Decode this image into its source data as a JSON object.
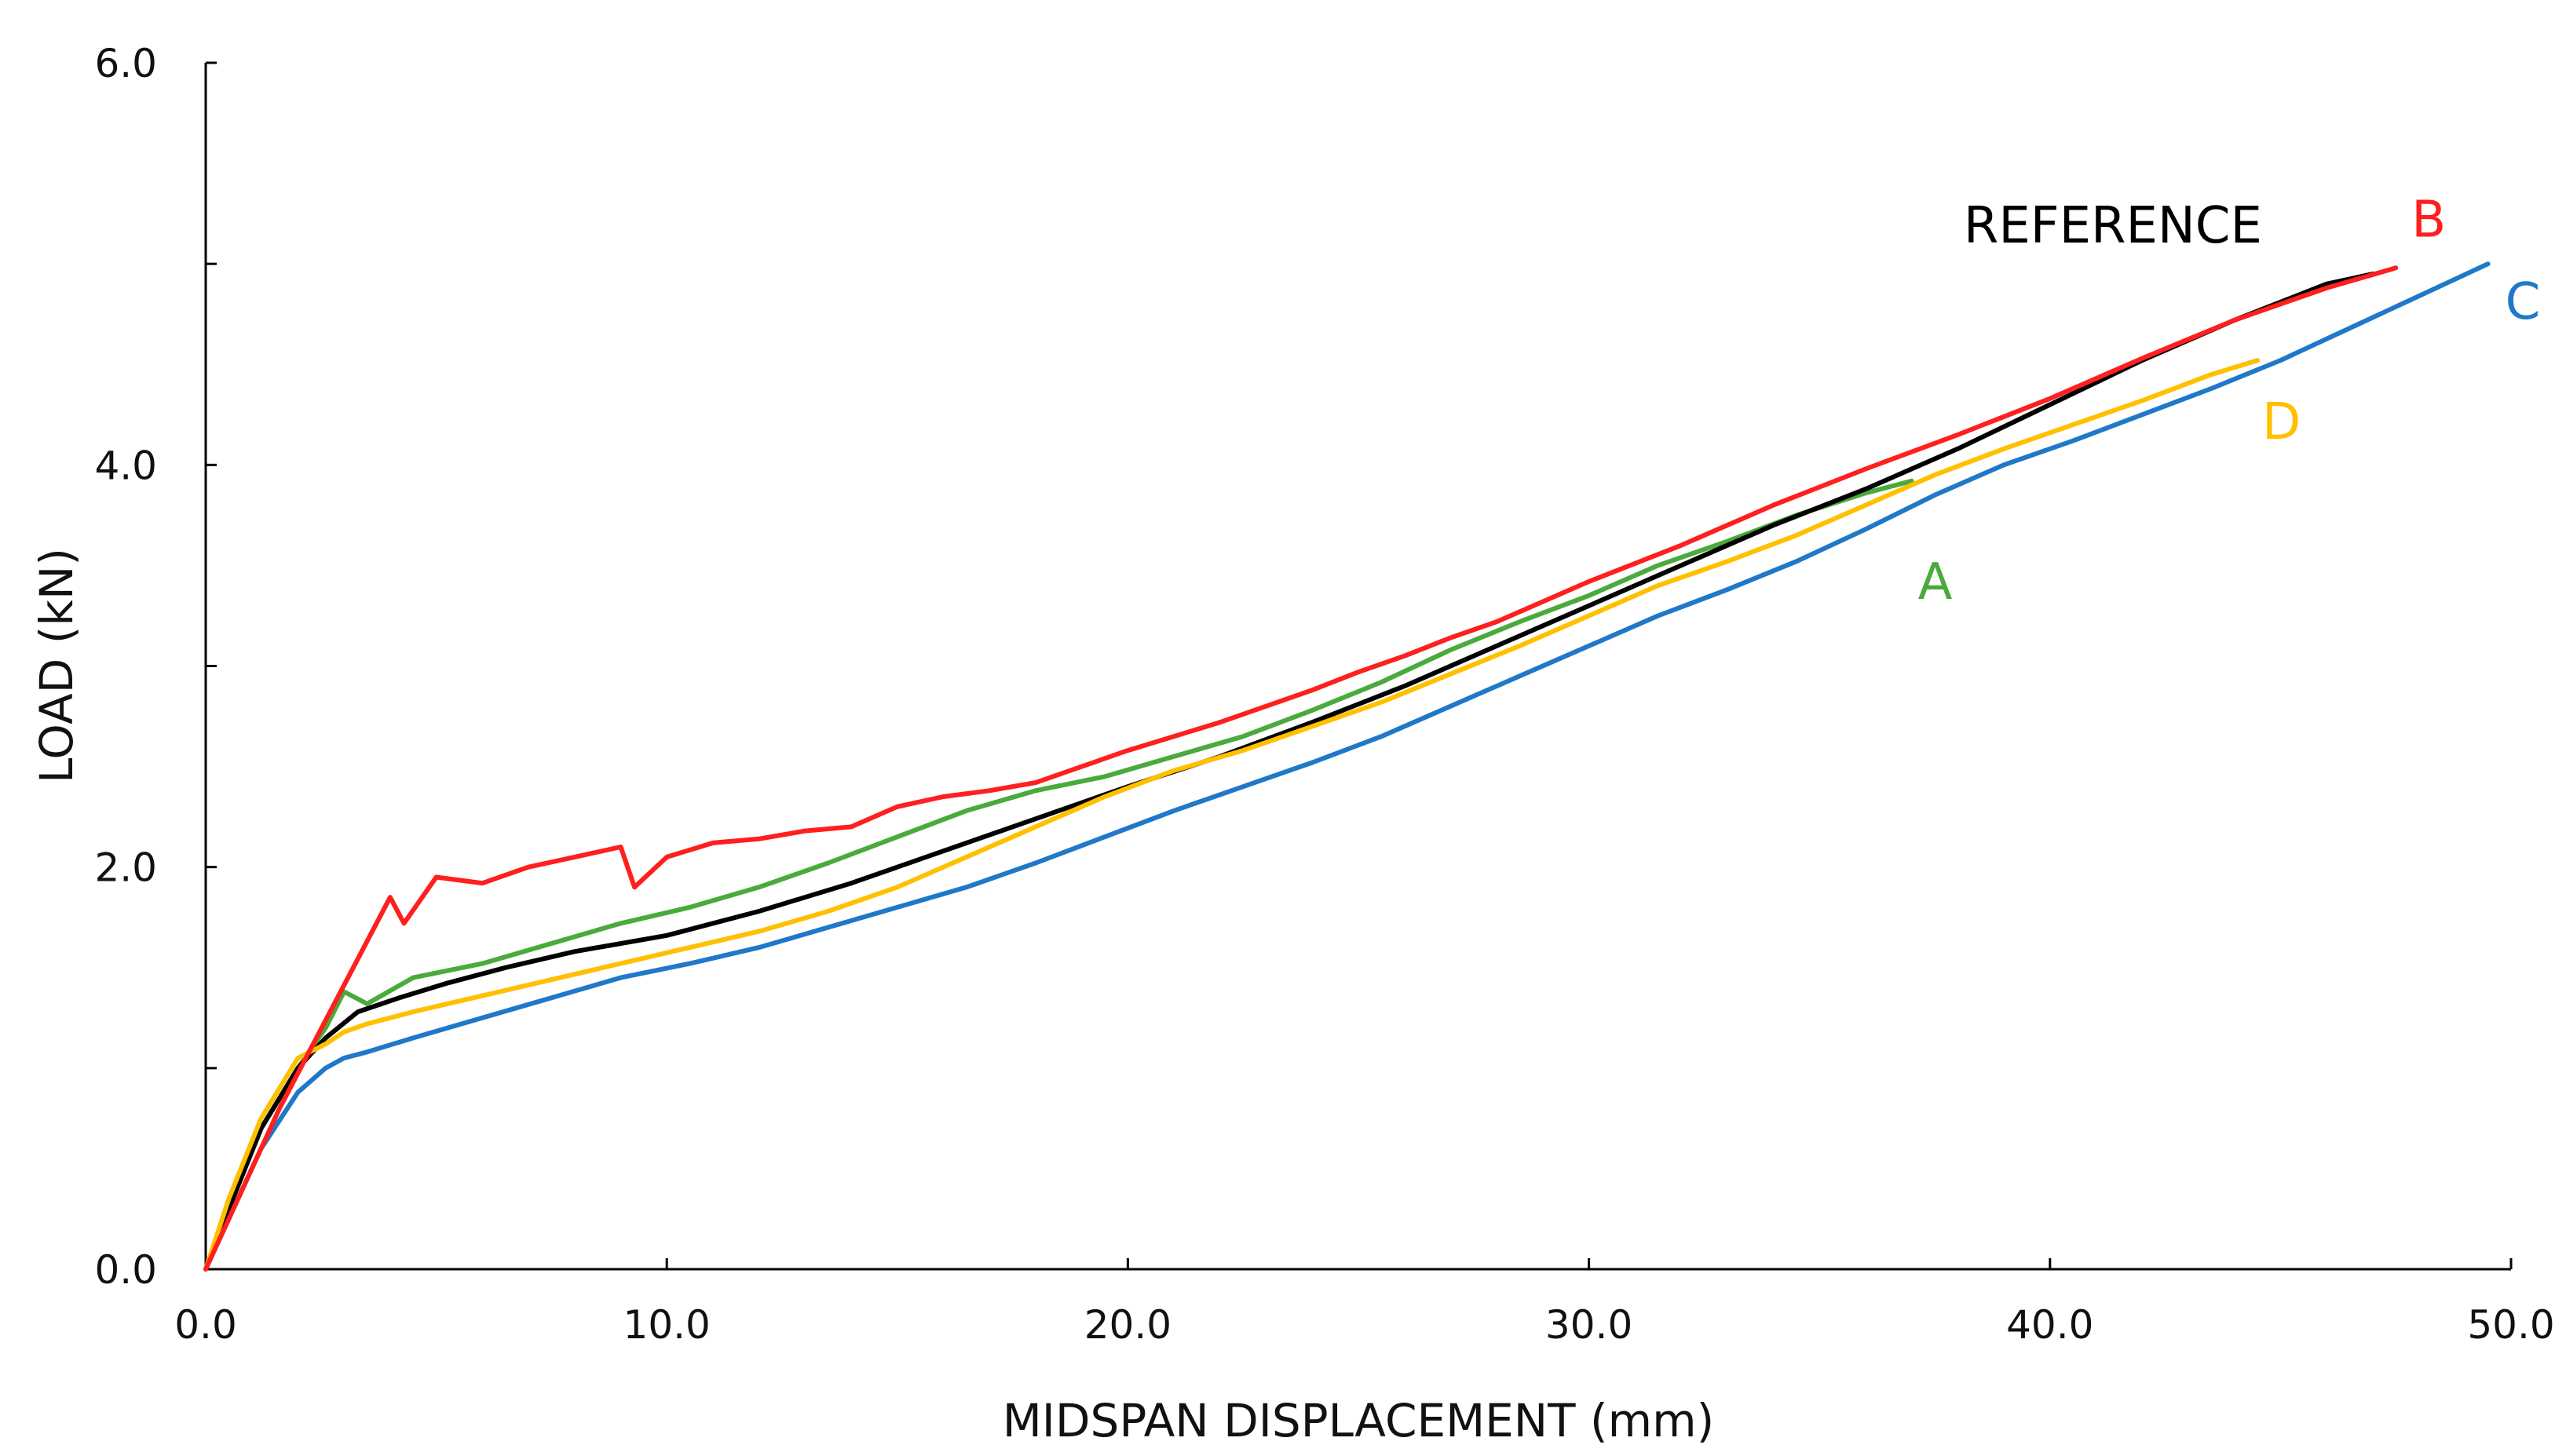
{
  "chart_data": {
    "type": "line",
    "title": "",
    "xlabel": "MIDSPAN DISPLACEMENT (mm)",
    "ylabel": "LOAD (kN)",
    "xlim": [
      0,
      50
    ],
    "ylim": [
      0,
      6
    ],
    "grid": false,
    "legend": "inline labels near series ends",
    "x_ticks": [
      0,
      10,
      20,
      30,
      40,
      50
    ],
    "x_tick_labels": [
      "0.0",
      "10.0",
      "20.0",
      "30.0",
      "40.0",
      "50.0"
    ],
    "y_ticks": [
      0,
      2,
      4,
      6
    ],
    "y_tick_labels": [
      "0.0",
      "2.0",
      "4.0",
      "6.0"
    ],
    "y_minor_ticks": [
      1,
      3,
      5
    ],
    "series": [
      {
        "name": "REFERENCE",
        "label": "REFERENCE",
        "color": "#000000",
        "x": [
          0,
          0.5,
          1.2,
          2.0,
          2.6,
          3.3,
          4.2,
          5.2,
          6.5,
          8.0,
          10.0,
          12.0,
          14.0,
          16.0,
          18.0,
          20.0,
          22.0,
          24.0,
          26.0,
          28.0,
          30.0,
          32.0,
          34.0,
          36.0,
          38.0,
          40.0,
          42.0,
          44.0,
          46.0,
          47.0
        ],
        "y": [
          0,
          0.3,
          0.7,
          1.0,
          1.15,
          1.28,
          1.35,
          1.42,
          1.5,
          1.58,
          1.66,
          1.78,
          1.92,
          2.08,
          2.24,
          2.4,
          2.55,
          2.72,
          2.9,
          3.1,
          3.3,
          3.5,
          3.7,
          3.88,
          4.08,
          4.3,
          4.52,
          4.72,
          4.9,
          4.95
        ]
      },
      {
        "name": "B",
        "label": "B",
        "color": "#ff1f1f",
        "x": [
          0,
          0.8,
          1.6,
          2.4,
          3.2,
          4.0,
          4.3,
          5.0,
          6.0,
          7.0,
          8.0,
          9.0,
          9.3,
          10.0,
          11.0,
          12.0,
          13.0,
          14.0,
          15.0,
          16.0,
          17.0,
          18.0,
          19.0,
          20.0,
          21.0,
          22.0,
          23.0,
          24.0,
          25.0,
          26.0,
          27.0,
          28.0,
          29.0,
          30.0,
          32.0,
          34.0,
          36.0,
          38.0,
          40.0,
          42.0,
          44.0,
          46.0,
          47.5
        ],
        "y": [
          0,
          0.4,
          0.8,
          1.15,
          1.5,
          1.85,
          1.72,
          1.95,
          1.92,
          2.0,
          2.05,
          2.1,
          1.9,
          2.05,
          2.12,
          2.14,
          2.18,
          2.2,
          2.3,
          2.35,
          2.38,
          2.42,
          2.5,
          2.58,
          2.65,
          2.72,
          2.8,
          2.88,
          2.97,
          3.05,
          3.14,
          3.22,
          3.32,
          3.42,
          3.6,
          3.8,
          3.98,
          4.15,
          4.33,
          4.53,
          4.72,
          4.88,
          4.98
        ]
      },
      {
        "name": "A",
        "label": "A",
        "color": "#4aaa3c",
        "x": [
          0,
          0.5,
          1.2,
          2.0,
          2.6,
          3.0,
          3.5,
          4.5,
          6.0,
          7.5,
          9.0,
          10.5,
          12.0,
          13.5,
          15.0,
          16.5,
          18.0,
          19.5,
          21.0,
          22.5,
          24.0,
          25.5,
          27.0,
          28.5,
          30.0,
          31.5,
          33.0,
          34.5,
          36.0,
          37.0
        ],
        "y": [
          0,
          0.3,
          0.7,
          1.0,
          1.2,
          1.38,
          1.32,
          1.45,
          1.52,
          1.62,
          1.72,
          1.8,
          1.9,
          2.02,
          2.15,
          2.28,
          2.38,
          2.45,
          2.55,
          2.65,
          2.78,
          2.92,
          3.08,
          3.22,
          3.35,
          3.5,
          3.62,
          3.75,
          3.86,
          3.92
        ]
      },
      {
        "name": "C",
        "label": "C",
        "color": "#1f78c8",
        "x": [
          0,
          0.5,
          1.2,
          2.0,
          2.6,
          3.0,
          3.5,
          4.5,
          6.0,
          7.5,
          9.0,
          10.5,
          12.0,
          13.5,
          15.0,
          16.5,
          18.0,
          19.5,
          21.0,
          22.5,
          24.0,
          25.5,
          27.0,
          28.5,
          30.0,
          31.5,
          33.0,
          34.5,
          36.0,
          37.5,
          39.0,
          40.5,
          42.0,
          43.5,
          45.0,
          46.5,
          48.0,
          49.5
        ],
        "y": [
          0,
          0.25,
          0.6,
          0.88,
          1.0,
          1.05,
          1.08,
          1.15,
          1.25,
          1.35,
          1.45,
          1.52,
          1.6,
          1.7,
          1.8,
          1.9,
          2.02,
          2.15,
          2.28,
          2.4,
          2.52,
          2.65,
          2.8,
          2.95,
          3.1,
          3.25,
          3.38,
          3.52,
          3.68,
          3.85,
          4.0,
          4.12,
          4.25,
          4.38,
          4.52,
          4.68,
          4.84,
          5.0
        ]
      },
      {
        "name": "D",
        "label": "D",
        "color": "#ffc000",
        "x": [
          0,
          0.5,
          1.2,
          2.0,
          2.6,
          3.0,
          3.5,
          4.5,
          6.0,
          7.5,
          9.0,
          10.5,
          12.0,
          13.5,
          15.0,
          16.5,
          18.0,
          19.5,
          21.0,
          22.5,
          24.0,
          25.5,
          27.0,
          28.5,
          30.0,
          31.5,
          33.0,
          34.5,
          36.0,
          37.5,
          39.0,
          40.5,
          42.0,
          43.5,
          44.5
        ],
        "y": [
          0,
          0.35,
          0.75,
          1.05,
          1.12,
          1.18,
          1.22,
          1.28,
          1.36,
          1.44,
          1.52,
          1.6,
          1.68,
          1.78,
          1.9,
          2.05,
          2.2,
          2.35,
          2.48,
          2.58,
          2.7,
          2.82,
          2.96,
          3.1,
          3.25,
          3.4,
          3.52,
          3.65,
          3.8,
          3.95,
          4.08,
          4.2,
          4.32,
          4.45,
          4.52
        ]
      }
    ]
  }
}
